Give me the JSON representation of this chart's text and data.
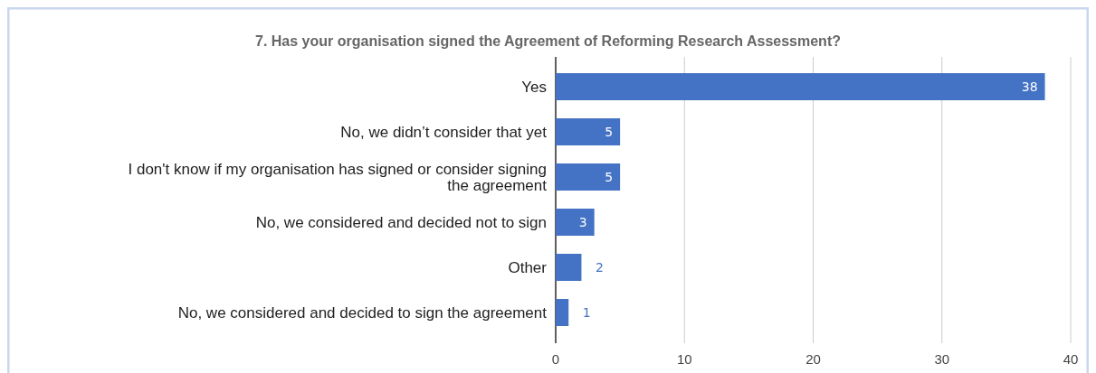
{
  "chart_data": {
    "type": "bar",
    "orientation": "horizontal",
    "title": "7. Has your organisation signed the Agreement of Reforming Research Assessment?",
    "categories": [
      "Yes",
      "No, we didn’t consider that yet",
      "I don't know if my organisation has signed or consider signing the agreement",
      "No, we considered and decided not to sign",
      "Other",
      "No, we considered and decided to sign the agreement"
    ],
    "values": [
      38,
      5,
      5,
      3,
      2,
      1
    ],
    "color": "#4472c4",
    "xlim": [
      0,
      40
    ],
    "xticks": [
      0,
      10,
      20,
      30,
      40
    ],
    "grid": "x",
    "data_labels": true
  }
}
